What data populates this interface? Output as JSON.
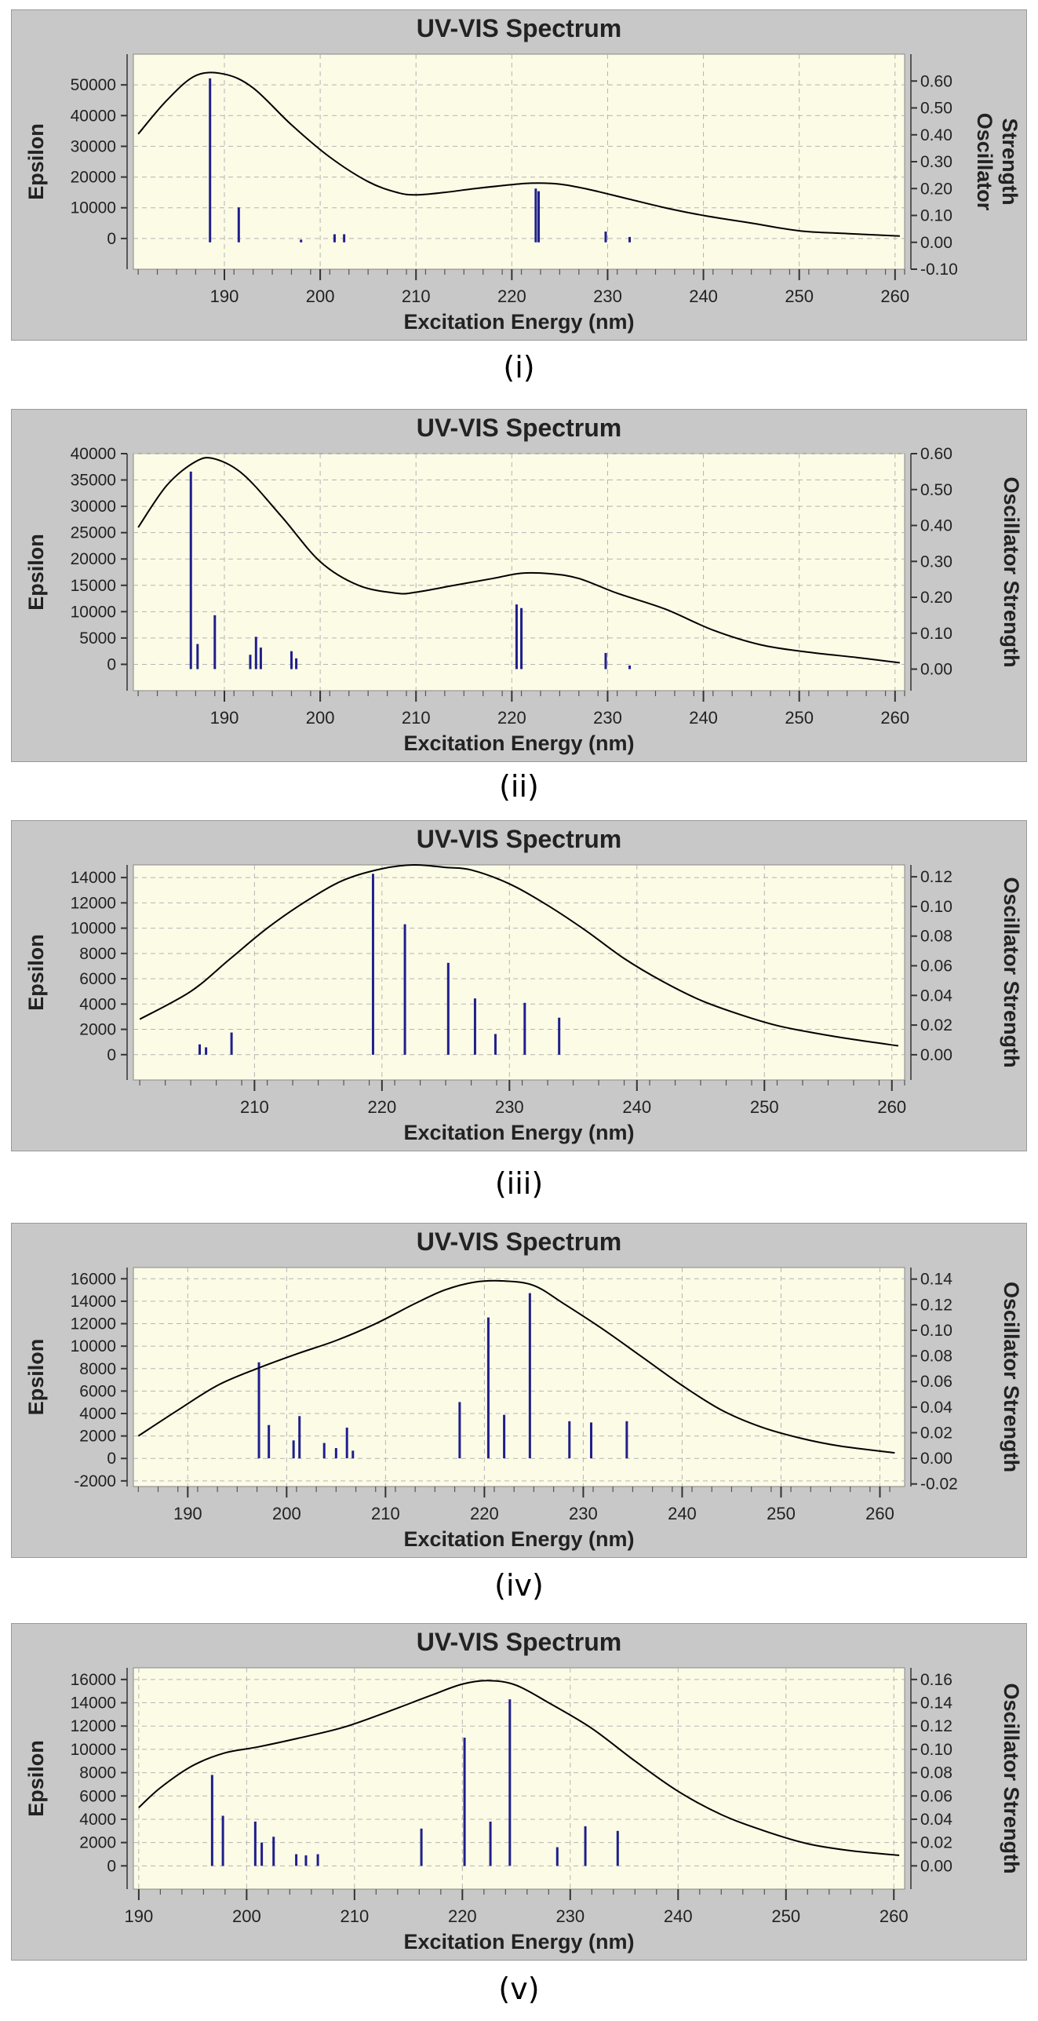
{
  "colors": {
    "panel_bg": "#c8c8c8",
    "plot_bg": "#fcfbe6",
    "grid": "#b4b4b4",
    "curve": "#000000",
    "stick": "#1f1f8c"
  },
  "chart_data": [
    {
      "type": "line",
      "title": "UV-VIS Spectrum",
      "caption": "(i)",
      "xlabel": "Excitation Energy (nm)",
      "ylabel": "Epsilon",
      "y2label_lines": [
        "Oscillator",
        "Strength"
      ],
      "xlim": [
        180.5,
        261
      ],
      "ylim": [
        -10000,
        60000
      ],
      "y2lim": [
        -0.1,
        0.7
      ],
      "xticks": [
        190,
        200,
        210,
        220,
        230,
        240,
        250,
        260
      ],
      "yticks": [
        "50000",
        "40000",
        "30000",
        "20000",
        "10000",
        "0"
      ],
      "y2ticks": [
        "0.60",
        "0.50",
        "0.40",
        "0.30",
        "0.20",
        "0.10",
        "0.00",
        "-0.10"
      ],
      "grid": true,
      "series": [
        {
          "kind": "curve",
          "x": [
            181,
            184,
            187,
            190,
            193,
            197,
            201,
            205,
            208,
            210,
            213,
            216,
            219,
            222,
            225,
            228,
            232,
            236,
            240,
            245,
            250,
            255,
            260.5
          ],
          "y": [
            34000,
            45000,
            53000,
            53500,
            49000,
            37000,
            26500,
            18500,
            15000,
            14200,
            15000,
            16200,
            17200,
            18000,
            17700,
            16000,
            13000,
            10000,
            7500,
            5000,
            2500,
            1600,
            800
          ]
        },
        {
          "kind": "sticks",
          "x": [
            188.5,
            191.5,
            198,
            201.5,
            202.5,
            222.5,
            222.8,
            229.8,
            232.3
          ],
          "y": [
            0.61,
            0.13,
            0.01,
            0.03,
            0.03,
            0.2,
            0.19,
            0.04,
            0.02
          ]
        }
      ]
    },
    {
      "type": "line",
      "title": "UV-VIS Spectrum",
      "caption": "(ii)",
      "xlabel": "Excitation Energy (nm)",
      "ylabel": "Epsilon",
      "y2label_lines": [
        "Oscillator Strength"
      ],
      "xlim": [
        180.5,
        261
      ],
      "ylim": [
        -5000,
        40000
      ],
      "y2lim": [
        -0.06,
        0.6
      ],
      "xticks": [
        190,
        200,
        210,
        220,
        230,
        240,
        250,
        260
      ],
      "yticks": [
        "40000",
        "35000",
        "30000",
        "25000",
        "20000",
        "15000",
        "10000",
        "5000",
        "0"
      ],
      "y2ticks": [
        "0.60",
        "0.50",
        "0.40",
        "0.30",
        "0.20",
        "0.10",
        "0.00"
      ],
      "grid": true,
      "series": [
        {
          "kind": "curve",
          "x": [
            181,
            184,
            187,
            189,
            192,
            196,
            200,
            204,
            208,
            210,
            214,
            218,
            221,
            224,
            227,
            231,
            236,
            241,
            246,
            251,
            256,
            260.5
          ],
          "y": [
            26000,
            34000,
            38500,
            39000,
            36000,
            28000,
            19500,
            15000,
            13500,
            13700,
            15000,
            16300,
            17300,
            17200,
            16300,
            13500,
            10500,
            6500,
            3700,
            2300,
            1300,
            300
          ]
        },
        {
          "kind": "sticks",
          "x": [
            186.5,
            187.2,
            189,
            192.7,
            193.3,
            193.8,
            197,
            197.5,
            220.5,
            221,
            229.8,
            232.3
          ],
          "y": [
            0.55,
            0.07,
            0.15,
            0.04,
            0.09,
            0.06,
            0.05,
            0.03,
            0.18,
            0.17,
            0.045,
            0.01
          ]
        }
      ]
    },
    {
      "type": "line",
      "title": "UV-VIS Spectrum",
      "caption": "(iii)",
      "xlabel": "Excitation Energy (nm)",
      "ylabel": "Epsilon",
      "y2label_lines": [
        "Oscillator Strength"
      ],
      "xlim": [
        200.5,
        261
      ],
      "ylim": [
        -2000,
        15000
      ],
      "y2lim": [
        -0.017,
        0.128
      ],
      "xticks": [
        210,
        220,
        230,
        240,
        250,
        260
      ],
      "yticks": [
        "14000",
        "12000",
        "10000",
        "8000",
        "6000",
        "4000",
        "2000",
        "0"
      ],
      "y2ticks": [
        "0.12",
        "0.10",
        "0.08",
        "0.06",
        "0.04",
        "0.02",
        "0.00"
      ],
      "grid": true,
      "series": [
        {
          "kind": "curve",
          "x": [
            201,
            205,
            208,
            211,
            214,
            217,
            220,
            222.5,
            225,
            227,
            230,
            233,
            236,
            239,
            242,
            245,
            248,
            251,
            254,
            257,
            260.5
          ],
          "y": [
            2800,
            5000,
            7500,
            10000,
            12100,
            13800,
            14700,
            15000,
            14800,
            14600,
            13500,
            11800,
            9800,
            7600,
            5800,
            4300,
            3200,
            2300,
            1700,
            1200,
            700
          ]
        },
        {
          "kind": "sticks",
          "x": [
            205.7,
            206.2,
            208.2,
            219.3,
            221.8,
            225.2,
            227.3,
            228.9,
            231.2,
            233.9
          ],
          "y": [
            0.007,
            0.005,
            0.015,
            0.122,
            0.088,
            0.062,
            0.038,
            0.014,
            0.035,
            0.025
          ]
        }
      ]
    },
    {
      "type": "line",
      "title": "UV-VIS Spectrum",
      "caption": "(iv)",
      "xlabel": "Excitation Energy (nm)",
      "ylabel": "Epsilon",
      "y2label_lines": [
        "Oscillator Strength"
      ],
      "xlim": [
        184.5,
        262.5
      ],
      "ylim": [
        -2500,
        17000
      ],
      "y2lim": [
        -0.022,
        0.149
      ],
      "xticks": [
        190,
        200,
        210,
        220,
        230,
        240,
        250,
        260
      ],
      "yticks": [
        "16000",
        "14000",
        "12000",
        "10000",
        "8000",
        "6000",
        "4000",
        "2000",
        "0",
        "-2000"
      ],
      "y2ticks": [
        "0.14",
        "0.12",
        "0.10",
        "0.08",
        "0.06",
        "0.04",
        "0.02",
        "0.00",
        "-0.02"
      ],
      "grid": true,
      "series": [
        {
          "kind": "curve",
          "x": [
            185,
            189,
            193,
            197,
            201,
            205,
            209,
            213,
            216,
            219,
            222,
            225,
            228,
            232,
            236,
            240,
            244,
            248,
            252,
            256,
            261.5
          ],
          "y": [
            2000,
            4300,
            6500,
            8000,
            9300,
            10500,
            12000,
            13800,
            15000,
            15700,
            15800,
            15400,
            13800,
            11500,
            9000,
            6500,
            4300,
            2800,
            1800,
            1100,
            500
          ]
        },
        {
          "kind": "sticks",
          "x": [
            197.2,
            198.2,
            200.7,
            201.3,
            203.8,
            205,
            206.1,
            206.7,
            217.5,
            220.4,
            222,
            224.6,
            228.6,
            230.8,
            234.4
          ],
          "y": [
            0.075,
            0.026,
            0.014,
            0.033,
            0.012,
            0.008,
            0.024,
            0.006,
            0.044,
            0.11,
            0.034,
            0.129,
            0.029,
            0.028,
            0.029
          ]
        }
      ]
    },
    {
      "type": "line",
      "title": "UV-VIS Spectrum",
      "caption": "(v)",
      "xlabel": "Excitation Energy (nm)",
      "ylabel": "Epsilon",
      "y2label_lines": [
        "Oscillator Strength"
      ],
      "xlim": [
        189.5,
        261
      ],
      "ylim": [
        -2000,
        17000
      ],
      "y2lim": [
        -0.02,
        0.17
      ],
      "xticks": [
        190,
        200,
        210,
        220,
        230,
        240,
        250,
        260
      ],
      "yticks": [
        "16000",
        "14000",
        "12000",
        "10000",
        "8000",
        "6000",
        "4000",
        "2000",
        "0"
      ],
      "y2ticks": [
        "0.16",
        "0.14",
        "0.12",
        "0.10",
        "0.08",
        "0.06",
        "0.04",
        "0.02",
        "0.00"
      ],
      "grid": true,
      "series": [
        {
          "kind": "curve",
          "x": [
            190,
            192,
            195,
            198,
            201,
            205,
            209,
            213,
            217,
            220,
            222.5,
            225,
            228,
            232,
            236,
            240,
            244,
            248,
            252,
            256,
            260.5
          ],
          "y": [
            5000,
            6700,
            8600,
            9700,
            10200,
            11000,
            11900,
            13200,
            14600,
            15600,
            15900,
            15500,
            14000,
            11800,
            9000,
            6400,
            4400,
            3000,
            1900,
            1300,
            900
          ]
        },
        {
          "kind": "sticks",
          "x": [
            196.8,
            197.8,
            200.8,
            201.4,
            202.5,
            204.6,
            205.5,
            206.6,
            216.2,
            220.2,
            222.6,
            224.4,
            228.8,
            231.4,
            234.4
          ],
          "y": [
            0.078,
            0.043,
            0.038,
            0.02,
            0.025,
            0.01,
            0.009,
            0.01,
            0.032,
            0.11,
            0.038,
            0.143,
            0.016,
            0.034,
            0.03
          ]
        }
      ]
    }
  ]
}
